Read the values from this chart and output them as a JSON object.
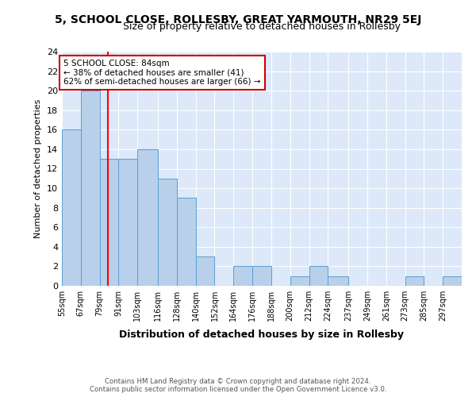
{
  "title": "5, SCHOOL CLOSE, ROLLESBY, GREAT YARMOUTH, NR29 5EJ",
  "subtitle": "Size of property relative to detached houses in Rollesby",
  "xlabel": "Distribution of detached houses by size in Rollesby",
  "ylabel": "Number of detached properties",
  "footer_line1": "Contains HM Land Registry data © Crown copyright and database right 2024.",
  "footer_line2": "Contains public sector information licensed under the Open Government Licence v3.0.",
  "bin_labels": [
    "55sqm",
    "67sqm",
    "79sqm",
    "91sqm",
    "103sqm",
    "116sqm",
    "128sqm",
    "140sqm",
    "152sqm",
    "164sqm",
    "176sqm",
    "188sqm",
    "200sqm",
    "212sqm",
    "224sqm",
    "237sqm",
    "249sqm",
    "261sqm",
    "273sqm",
    "285sqm",
    "297sqm"
  ],
  "bin_edges": [
    55,
    67,
    79,
    91,
    103,
    116,
    128,
    140,
    152,
    164,
    176,
    188,
    200,
    212,
    224,
    237,
    249,
    261,
    273,
    285,
    297
  ],
  "bar_heights": [
    16,
    20,
    13,
    13,
    14,
    11,
    9,
    3,
    0,
    2,
    2,
    0,
    1,
    2,
    1,
    0,
    0,
    0,
    1,
    0,
    1
  ],
  "bar_color": "#b8d0ea",
  "bar_edge_color": "#5a9fd4",
  "red_line_x": 84,
  "annotation_title": "5 SCHOOL CLOSE: 84sqm",
  "annotation_line2": "← 38% of detached houses are smaller (41)",
  "annotation_line3": "62% of semi-detached houses are larger (66) →",
  "annotation_box_color": "#ffffff",
  "annotation_box_edge_color": "#cc0000",
  "ylim": [
    0,
    24
  ],
  "yticks": [
    0,
    2,
    4,
    6,
    8,
    10,
    12,
    14,
    16,
    18,
    20,
    22,
    24
  ],
  "bg_color": "#dde8f8",
  "grid_color": "#ffffff",
  "fig_bg_color": "#ffffff",
  "title_fontsize": 10,
  "subtitle_fontsize": 9
}
